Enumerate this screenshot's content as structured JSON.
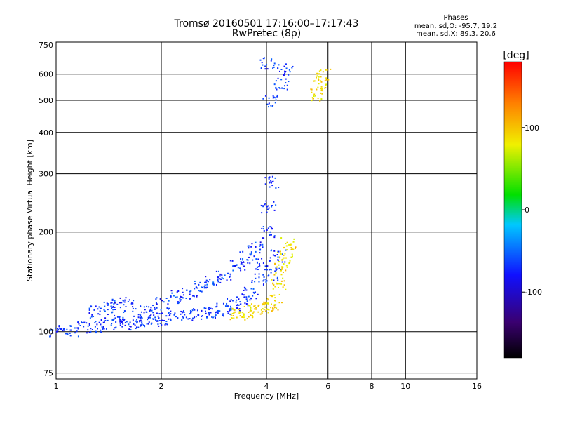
{
  "chart_data": {
    "type": "scatter",
    "title": "Tromsø 20160501 17:16:00–17:17:43",
    "subtitle": "RwPretec (8p)",
    "xlabel": "Frequency [MHz]",
    "ylabel": "Stationary phase Virtual Height [km]",
    "x_scale": "log",
    "y_scale": "log",
    "xlim": [
      1,
      16
    ],
    "ylim": [
      72,
      750
    ],
    "x_ticks": [
      1,
      2,
      4,
      6,
      8,
      10,
      16
    ],
    "y_ticks": [
      75,
      100,
      200,
      300,
      400,
      500,
      600,
      750
    ],
    "grid": true,
    "colorbar": {
      "label": "[deg]",
      "range": [
        -180,
        180
      ],
      "ticks": [
        100,
        0,
        -100
      ],
      "colormap": "rainbow (black-purple-blue-cyan-green-yellow-orange-red)"
    },
    "stats": {
      "name": "Phases",
      "o_mode": "mean, sd,O: -95.7, 19.2",
      "x_mode": "mean, sd,X:  89.3, 20.6"
    },
    "series": [
      {
        "mode": "O",
        "phase_mean": -95.7,
        "phase_sd": 19.2,
        "x": [
          1.0,
          1.1,
          1.2,
          1.3,
          1.4,
          1.5,
          1.6,
          1.7,
          1.8,
          1.9,
          2.0,
          2.2,
          2.4,
          2.6,
          2.8,
          3.0,
          3.2,
          3.4,
          3.6,
          3.8,
          3.9,
          4.0,
          4.05,
          4.1,
          4.2,
          4.3,
          4.4,
          4.5,
          4.0,
          4.1
        ],
        "y": [
          101,
          101,
          103,
          104,
          106,
          108,
          106,
          107,
          108,
          109,
          110,
          112,
          113,
          114,
          115,
          117,
          121,
          125,
          132,
          145,
          160,
          200,
          240,
          285,
          150,
          170,
          560,
          620,
          650,
          500
        ]
      },
      {
        "mode": "O (scattered upper trace)",
        "x": [
          1.3,
          1.4,
          1.5,
          1.6,
          1.8,
          2.0,
          2.2,
          2.4,
          2.6,
          2.8,
          3.0,
          3.3,
          3.5,
          3.7
        ],
        "y": [
          115,
          118,
          122,
          120,
          118,
          122,
          128,
          132,
          138,
          142,
          150,
          160,
          168,
          180
        ]
      },
      {
        "mode": "X",
        "phase_mean": 89.3,
        "phase_sd": 20.6,
        "x": [
          3.3,
          3.5,
          3.7,
          3.9,
          4.1,
          4.2,
          4.3,
          4.4,
          4.5,
          4.6,
          5.6,
          5.7,
          5.8
        ],
        "y": [
          113,
          115,
          117,
          119,
          121,
          125,
          140,
          155,
          170,
          185,
          520,
          560,
          600
        ]
      }
    ]
  }
}
